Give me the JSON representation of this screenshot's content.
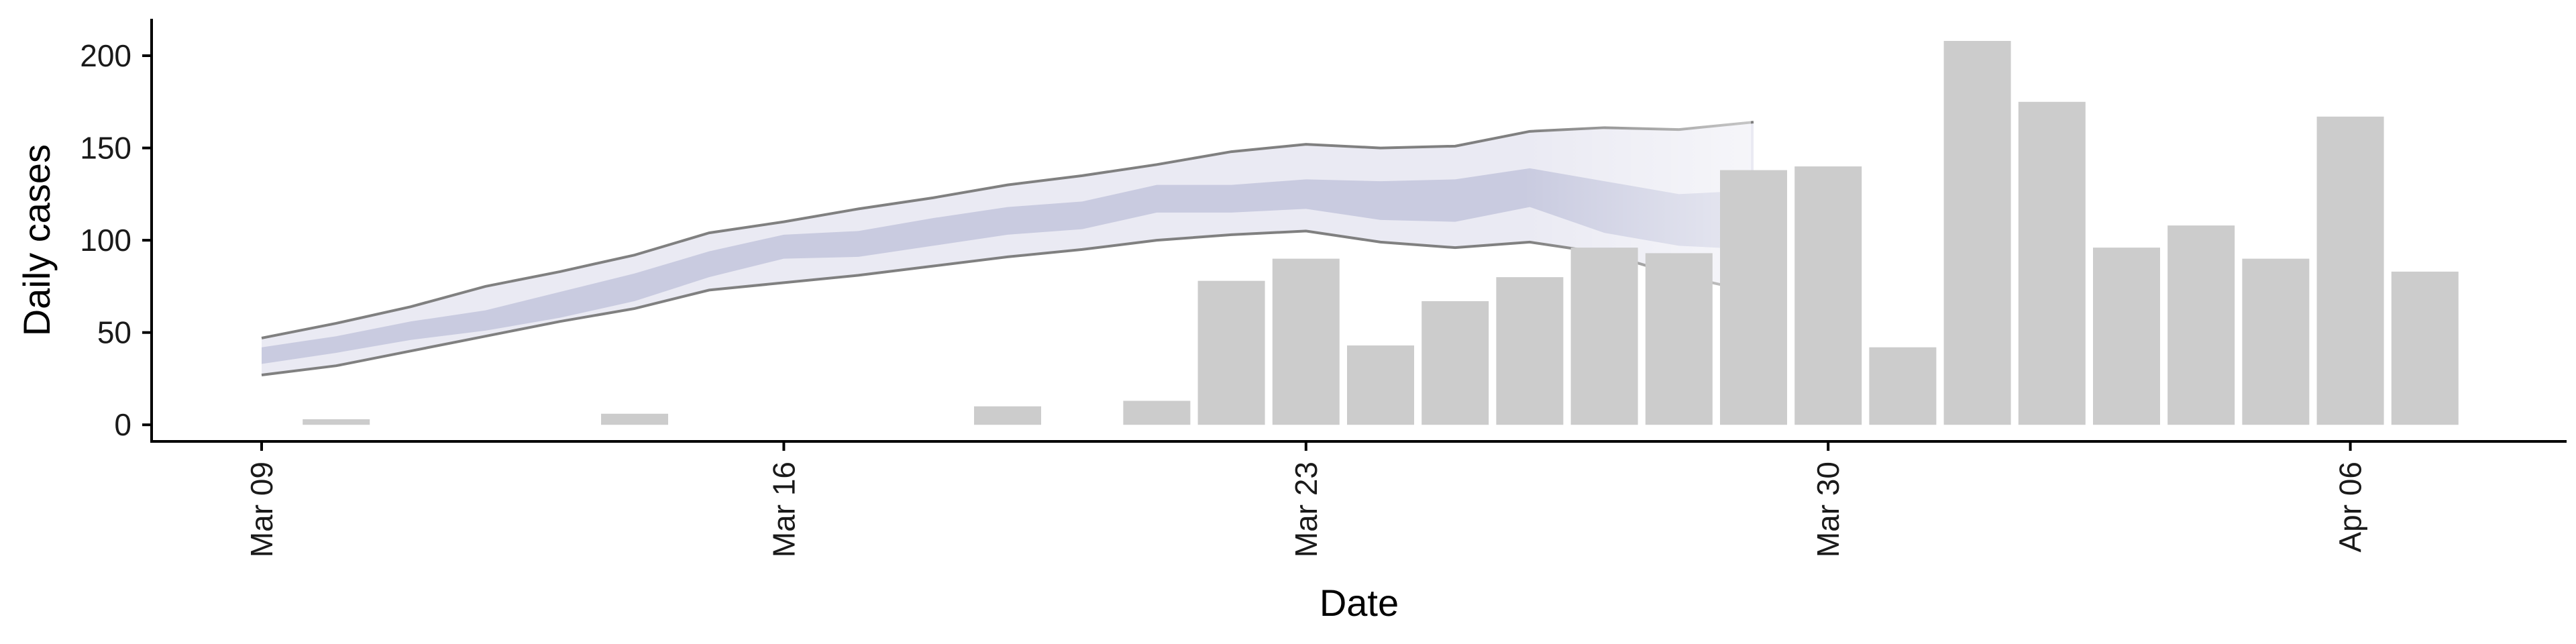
{
  "chart_data": {
    "type": "bar",
    "xlabel": "Date",
    "ylabel": "Daily cases",
    "ylim": [
      -9,
      220
    ],
    "yticks": [
      0,
      50,
      100,
      150,
      200
    ],
    "xticks": [
      {
        "date": "2020-03-09",
        "label": "Mar 09"
      },
      {
        "date": "2020-03-16",
        "label": "Mar 16"
      },
      {
        "date": "2020-03-23",
        "label": "Mar 23"
      },
      {
        "date": "2020-03-30",
        "label": "Mar 30"
      },
      {
        "date": "2020-04-06",
        "label": "Apr 06"
      }
    ],
    "grid": false,
    "legend": "none",
    "bars": [
      {
        "date": "2020-03-10",
        "value": 3
      },
      {
        "date": "2020-03-14",
        "value": 6
      },
      {
        "date": "2020-03-19",
        "value": 10
      },
      {
        "date": "2020-03-21",
        "value": 13
      },
      {
        "date": "2020-03-22",
        "value": 78
      },
      {
        "date": "2020-03-23",
        "value": 90
      },
      {
        "date": "2020-03-24",
        "value": 43
      },
      {
        "date": "2020-03-25",
        "value": 67
      },
      {
        "date": "2020-03-26",
        "value": 80
      },
      {
        "date": "2020-03-27",
        "value": 96
      },
      {
        "date": "2020-03-28",
        "value": 93
      },
      {
        "date": "2020-03-29",
        "value": 138
      },
      {
        "date": "2020-03-30",
        "value": 140
      },
      {
        "date": "2020-03-31",
        "value": 42
      },
      {
        "date": "2020-04-01",
        "value": 208
      },
      {
        "date": "2020-04-02",
        "value": 175
      },
      {
        "date": "2020-04-03",
        "value": 96
      },
      {
        "date": "2020-04-04",
        "value": 108
      },
      {
        "date": "2020-04-05",
        "value": 90
      },
      {
        "date": "2020-04-06",
        "value": 167
      },
      {
        "date": "2020-04-07",
        "value": 83
      }
    ],
    "projection": {
      "dates": [
        "2020-03-09",
        "2020-03-10",
        "2020-03-11",
        "2020-03-12",
        "2020-03-13",
        "2020-03-14",
        "2020-03-15",
        "2020-03-16",
        "2020-03-17",
        "2020-03-18",
        "2020-03-19",
        "2020-03-20",
        "2020-03-21",
        "2020-03-22",
        "2020-03-23",
        "2020-03-24",
        "2020-03-25",
        "2020-03-26",
        "2020-03-27",
        "2020-03-28",
        "2020-03-29"
      ],
      "outer_upper": [
        47,
        55,
        64,
        75,
        83,
        92,
        104,
        110,
        117,
        123,
        130,
        135,
        141,
        148,
        152,
        150,
        151,
        159,
        161,
        160,
        164
      ],
      "outer_lower": [
        27,
        32,
        40,
        48,
        56,
        63,
        73,
        77,
        81,
        86,
        91,
        95,
        100,
        103,
        105,
        99,
        96,
        99,
        93,
        81,
        72
      ],
      "inner_upper": [
        42,
        48,
        56,
        62,
        72,
        82,
        94,
        103,
        105,
        112,
        118,
        121,
        130,
        130,
        133,
        132,
        133,
        139,
        132,
        125,
        127
      ],
      "inner_lower": [
        33,
        39,
        46,
        51,
        58,
        67,
        80,
        90,
        91,
        97,
        103,
        106,
        115,
        115,
        117,
        111,
        110,
        118,
        104,
        97,
        95
      ]
    },
    "colors": {
      "bar": "#cccccc",
      "outer_band": "#eaeaf3",
      "inner_band": "#c9cbe0",
      "outer_line": "#808080",
      "axis": "#000000"
    }
  }
}
